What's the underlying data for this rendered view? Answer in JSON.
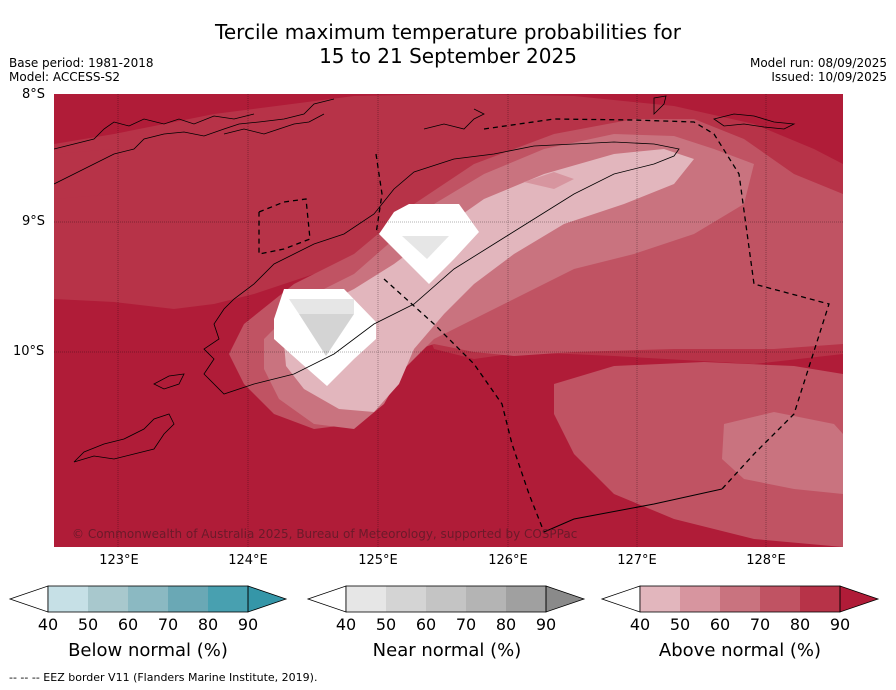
{
  "title_line1": "Tercile maximum temperature probabilities for",
  "title_line2": "15 to 21 September 2025",
  "base_period": "Base period: 1981-2018",
  "model": "Model: ACCESS-S2",
  "model_run": "Model run: 08/09/2025",
  "issued": "Issued: 10/09/2025",
  "lat_labels": [
    "8°S",
    "9°S",
    "10°S"
  ],
  "lon_labels": [
    "123°E",
    "124°E",
    "125°E",
    "126°E",
    "127°E",
    "128°E"
  ],
  "copyright": "© Commonwealth of Australia 2025, Bureau of Meteorology, supported by COSPPac",
  "colorbars": [
    {
      "label": "Below normal (%)",
      "ticks": [
        "40",
        "50",
        "60",
        "70",
        "80",
        "90"
      ],
      "colors": [
        "#ffffff",
        "#c6e0e6",
        "#a8c8cd",
        "#8bb9c2",
        "#6aa8b5",
        "#48a0b0",
        "#3596a8"
      ]
    },
    {
      "label": "Near normal (%)",
      "ticks": [
        "40",
        "50",
        "60",
        "70",
        "80",
        "90"
      ],
      "colors": [
        "#ffffff",
        "#e6e6e6",
        "#d4d4d4",
        "#c4c4c4",
        "#b4b4b4",
        "#a0a0a0",
        "#8a8a8a"
      ]
    },
    {
      "label": "Above normal (%)",
      "ticks": [
        "40",
        "50",
        "60",
        "70",
        "80",
        "90"
      ],
      "colors": [
        "#ffffff",
        "#e2b6bd",
        "#d7959f",
        "#c9737f",
        "#c05363",
        "#b73348",
        "#b01c38"
      ]
    }
  ],
  "footer": "--  --  -- EEZ border V11 (Flanders Marine Institute, 2019)."
}
